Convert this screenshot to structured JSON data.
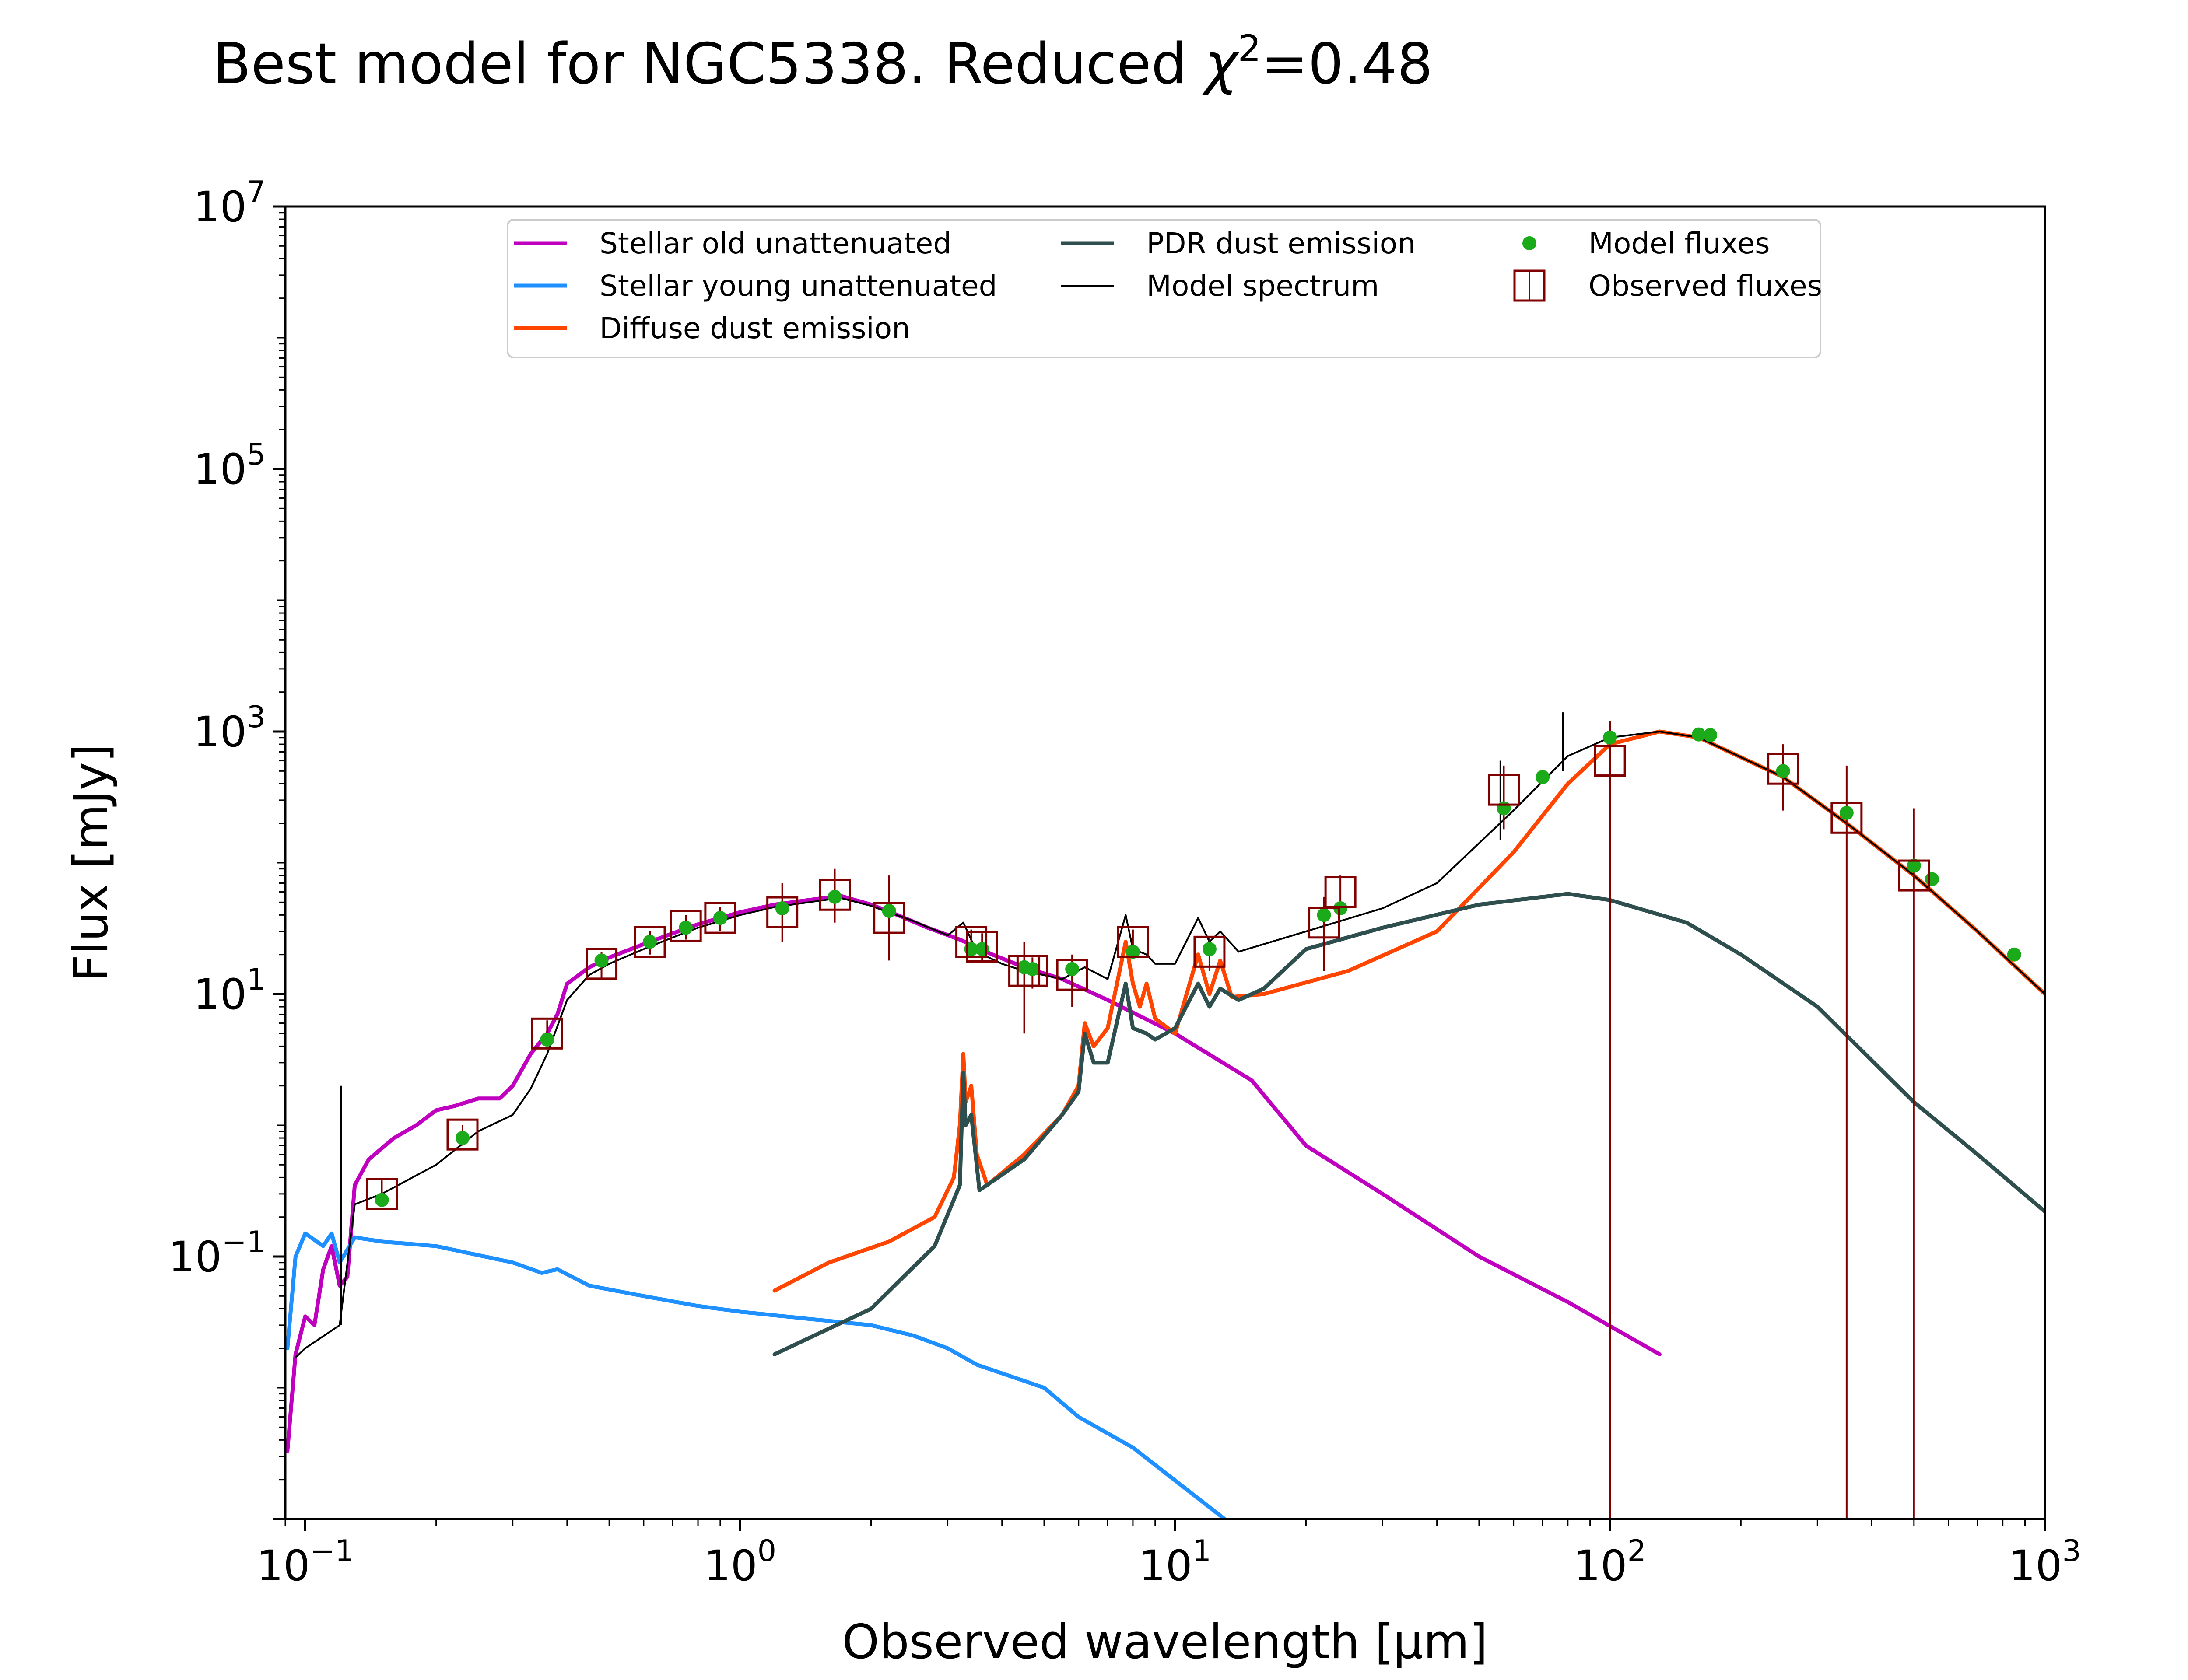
{
  "chart_data": {
    "type": "line",
    "title": "Best model for NGC5338. Reduced χ²=0.48",
    "title_parts": {
      "prefix": "Best model for NGC5338. Reduced ",
      "chi": "χ",
      "sup": "2",
      "suffix": "=0.48"
    },
    "xlabel": "Observed wavelength [μm]",
    "ylabel": "Flux [mJy]",
    "xscale": "log",
    "yscale": "log",
    "xlim": [
      0.09,
      1000
    ],
    "ylim": [
      0.001,
      10000000
    ],
    "x_ticks": [
      {
        "value": 0.1,
        "base": "10",
        "exp": "−1"
      },
      {
        "value": 1,
        "base": "10",
        "exp": "0"
      },
      {
        "value": 10,
        "base": "10",
        "exp": "1"
      },
      {
        "value": 100,
        "base": "10",
        "exp": "2"
      },
      {
        "value": 1000,
        "base": "10",
        "exp": "3"
      }
    ],
    "y_ticks": [
      {
        "value": 0.1,
        "base": "10",
        "exp": "−1"
      },
      {
        "value": 10,
        "base": "10",
        "exp": "1"
      },
      {
        "value": 1000,
        "base": "10",
        "exp": "3"
      },
      {
        "value": 100000,
        "base": "10",
        "exp": "5"
      },
      {
        "value": 10000000,
        "base": "10",
        "exp": "7"
      }
    ],
    "grid": false,
    "legend_position": "top-center",
    "legend": [
      {
        "label": "Stellar old unattenuated",
        "style": "line",
        "color": "#bf00bf"
      },
      {
        "label": "Stellar young unattenuated",
        "style": "line",
        "color": "#1e90ff"
      },
      {
        "label": "Diffuse dust emission",
        "style": "line",
        "color": "#ff4500"
      },
      {
        "label": "PDR dust emission",
        "style": "line",
        "color": "#2f4f4f"
      },
      {
        "label": "Model spectrum",
        "style": "thin-line",
        "color": "#000000"
      },
      {
        "label": "Model fluxes",
        "style": "dot",
        "color": "#1aaa1a"
      },
      {
        "label": "Observed fluxes",
        "style": "square",
        "color": "#800000"
      }
    ],
    "series": [
      {
        "name": "Stellar old unattenuated",
        "color": "#bf00bf",
        "points": [
          [
            0.091,
            0.0033
          ],
          [
            0.095,
            0.018
          ],
          [
            0.1,
            0.035
          ],
          [
            0.105,
            0.03
          ],
          [
            0.11,
            0.08
          ],
          [
            0.115,
            0.12
          ],
          [
            0.12,
            0.06
          ],
          [
            0.125,
            0.07
          ],
          [
            0.13,
            0.35
          ],
          [
            0.14,
            0.55
          ],
          [
            0.16,
            0.8
          ],
          [
            0.18,
            1.0
          ],
          [
            0.2,
            1.3
          ],
          [
            0.22,
            1.4
          ],
          [
            0.25,
            1.6
          ],
          [
            0.28,
            1.6
          ],
          [
            0.3,
            2.0
          ],
          [
            0.33,
            3.5
          ],
          [
            0.36,
            5.0
          ],
          [
            0.38,
            7.0
          ],
          [
            0.4,
            12
          ],
          [
            0.45,
            16
          ],
          [
            0.5,
            19
          ],
          [
            0.6,
            24
          ],
          [
            0.7,
            29
          ],
          [
            0.8,
            34
          ],
          [
            0.9,
            38
          ],
          [
            1.0,
            42
          ],
          [
            1.2,
            48
          ],
          [
            1.5,
            53
          ],
          [
            1.7,
            56
          ],
          [
            2.0,
            48
          ],
          [
            2.3,
            40
          ],
          [
            2.7,
            32
          ],
          [
            3.2,
            26
          ],
          [
            3.8,
            20
          ],
          [
            4.5,
            16
          ],
          [
            5.5,
            13
          ],
          [
            7,
            9
          ],
          [
            10,
            5
          ],
          [
            15,
            2.2
          ],
          [
            20,
            0.7
          ],
          [
            30,
            0.3
          ],
          [
            50,
            0.1
          ],
          [
            80,
            0.045
          ],
          [
            130,
            0.018
          ]
        ]
      },
      {
        "name": "Stellar young unattenuated",
        "color": "#1e90ff",
        "points": [
          [
            0.091,
            0.02
          ],
          [
            0.095,
            0.1
          ],
          [
            0.1,
            0.15
          ],
          [
            0.11,
            0.12
          ],
          [
            0.115,
            0.15
          ],
          [
            0.12,
            0.09
          ],
          [
            0.13,
            0.14
          ],
          [
            0.15,
            0.13
          ],
          [
            0.2,
            0.12
          ],
          [
            0.3,
            0.09
          ],
          [
            0.35,
            0.075
          ],
          [
            0.38,
            0.08
          ],
          [
            0.45,
            0.06
          ],
          [
            0.6,
            0.05
          ],
          [
            0.8,
            0.042
          ],
          [
            1.0,
            0.038
          ],
          [
            1.5,
            0.033
          ],
          [
            2.0,
            0.03
          ],
          [
            2.5,
            0.025
          ],
          [
            3.0,
            0.02
          ],
          [
            3.5,
            0.015
          ],
          [
            5.0,
            0.01
          ],
          [
            6.0,
            0.006
          ],
          [
            8.0,
            0.0035
          ],
          [
            13.0,
            0.001
          ]
        ]
      },
      {
        "name": "Diffuse dust emission",
        "color": "#ff4500",
        "points": [
          [
            1.2,
            0.055
          ],
          [
            1.6,
            0.09
          ],
          [
            2.2,
            0.13
          ],
          [
            2.8,
            0.2
          ],
          [
            3.1,
            0.4
          ],
          [
            3.2,
            1.0
          ],
          [
            3.26,
            3.5
          ],
          [
            3.3,
            1.5
          ],
          [
            3.4,
            2.0
          ],
          [
            3.5,
            0.6
          ],
          [
            3.7,
            0.35
          ],
          [
            4.5,
            0.6
          ],
          [
            5.5,
            1.2
          ],
          [
            6.0,
            2.0
          ],
          [
            6.2,
            6.0
          ],
          [
            6.5,
            4.0
          ],
          [
            7.0,
            5.5
          ],
          [
            7.7,
            25
          ],
          [
            8.0,
            12
          ],
          [
            8.3,
            8
          ],
          [
            8.6,
            12
          ],
          [
            9.0,
            6.5
          ],
          [
            10.0,
            5.0
          ],
          [
            11.3,
            20
          ],
          [
            12.0,
            10
          ],
          [
            12.7,
            18
          ],
          [
            13.5,
            9.5
          ],
          [
            16,
            10
          ],
          [
            25,
            15
          ],
          [
            40,
            30
          ],
          [
            60,
            120
          ],
          [
            80,
            400
          ],
          [
            100,
            800
          ],
          [
            130,
            1000
          ],
          [
            160,
            900
          ],
          [
            250,
            450
          ],
          [
            350,
            200
          ],
          [
            500,
            80
          ],
          [
            700,
            30
          ],
          [
            1000,
            10
          ]
        ]
      },
      {
        "name": "PDR dust emission",
        "color": "#2f4f4f",
        "points": [
          [
            1.2,
            0.018
          ],
          [
            2.0,
            0.04
          ],
          [
            2.8,
            0.12
          ],
          [
            3.2,
            0.35
          ],
          [
            3.26,
            2.5
          ],
          [
            3.3,
            1.0
          ],
          [
            3.4,
            1.2
          ],
          [
            3.55,
            0.32
          ],
          [
            4.5,
            0.55
          ],
          [
            5.5,
            1.2
          ],
          [
            6.0,
            1.8
          ],
          [
            6.2,
            5.0
          ],
          [
            6.5,
            3.0
          ],
          [
            7.0,
            3.0
          ],
          [
            7.7,
            12
          ],
          [
            8.0,
            5.5
          ],
          [
            8.6,
            5.0
          ],
          [
            9.0,
            4.5
          ],
          [
            10,
            5.5
          ],
          [
            11.3,
            12
          ],
          [
            12.0,
            8
          ],
          [
            12.7,
            11
          ],
          [
            14,
            9
          ],
          [
            16,
            11
          ],
          [
            20,
            22
          ],
          [
            30,
            32
          ],
          [
            50,
            48
          ],
          [
            80,
            58
          ],
          [
            100,
            52
          ],
          [
            150,
            35
          ],
          [
            200,
            20
          ],
          [
            300,
            8
          ],
          [
            500,
            1.5
          ],
          [
            700,
            0.6
          ],
          [
            1000,
            0.22
          ]
        ]
      },
      {
        "name": "Model spectrum",
        "color": "#000000",
        "points": [
          [
            0.095,
            0.017
          ],
          [
            0.1,
            0.02
          ],
          [
            0.12,
            0.03
          ],
          [
            0.13,
            0.25
          ],
          [
            0.15,
            0.3
          ],
          [
            0.2,
            0.5
          ],
          [
            0.25,
            0.9
          ],
          [
            0.3,
            1.2
          ],
          [
            0.33,
            1.9
          ],
          [
            0.36,
            3.5
          ],
          [
            0.4,
            9
          ],
          [
            0.45,
            14
          ],
          [
            0.5,
            17
          ],
          [
            0.6,
            22
          ],
          [
            0.7,
            27
          ],
          [
            0.8,
            32
          ],
          [
            0.9,
            36
          ],
          [
            1.0,
            40
          ],
          [
            1.2,
            46
          ],
          [
            1.5,
            51
          ],
          [
            1.7,
            54
          ],
          [
            2.0,
            47
          ],
          [
            2.5,
            36
          ],
          [
            3.0,
            28
          ],
          [
            3.26,
            35
          ],
          [
            3.5,
            21
          ],
          [
            4.0,
            17
          ],
          [
            4.5,
            15
          ],
          [
            5.5,
            13
          ],
          [
            6.2,
            16
          ],
          [
            7.0,
            13
          ],
          [
            7.7,
            40
          ],
          [
            8.0,
            22
          ],
          [
            8.6,
            20
          ],
          [
            9.0,
            17
          ],
          [
            10,
            17
          ],
          [
            11.3,
            38
          ],
          [
            12,
            25
          ],
          [
            12.7,
            30
          ],
          [
            14,
            21
          ],
          [
            16,
            24
          ],
          [
            20,
            30
          ],
          [
            30,
            45
          ],
          [
            40,
            70
          ],
          [
            60,
            250
          ],
          [
            80,
            650
          ],
          [
            100,
            900
          ],
          [
            130,
            1000
          ],
          [
            160,
            900
          ],
          [
            250,
            450
          ],
          [
            350,
            200
          ],
          [
            500,
            80
          ],
          [
            700,
            30
          ],
          [
            1000,
            10
          ]
        ]
      }
    ],
    "spikes": [
      [
        0.121,
        0.03,
        2.0
      ],
      [
        56,
        150,
        600
      ],
      [
        78,
        500,
        1400
      ]
    ],
    "model_fluxes": [
      [
        0.15,
        0.27
      ],
      [
        0.23,
        0.8
      ],
      [
        0.36,
        4.5
      ],
      [
        0.48,
        18
      ],
      [
        0.62,
        25
      ],
      [
        0.75,
        32
      ],
      [
        0.9,
        38
      ],
      [
        1.25,
        45
      ],
      [
        1.65,
        55
      ],
      [
        2.2,
        43
      ],
      [
        3.4,
        22
      ],
      [
        3.6,
        22
      ],
      [
        4.5,
        16
      ],
      [
        4.7,
        15.5
      ],
      [
        5.8,
        15.5
      ],
      [
        8.0,
        21
      ],
      [
        12,
        22
      ],
      [
        22,
        40
      ],
      [
        24,
        45
      ],
      [
        57,
        260
      ],
      [
        70,
        450
      ],
      [
        100,
        900
      ],
      [
        160,
        950
      ],
      [
        170,
        940
      ],
      [
        250,
        500
      ],
      [
        350,
        240
      ],
      [
        500,
        95
      ],
      [
        550,
        75
      ],
      [
        850,
        20
      ]
    ],
    "observed_fluxes": [
      [
        0.15,
        0.3,
        0.25,
        0.38
      ],
      [
        0.23,
        0.85,
        0.7,
        1.0
      ],
      [
        0.36,
        5.0,
        4.0,
        6.3
      ],
      [
        0.48,
        17,
        13,
        21
      ],
      [
        0.62,
        25,
        20,
        30
      ],
      [
        0.75,
        33,
        26,
        40
      ],
      [
        0.9,
        38,
        30,
        46
      ],
      [
        1.25,
        42,
        25,
        70
      ],
      [
        1.65,
        57,
        35,
        90
      ],
      [
        2.2,
        38,
        18,
        80
      ],
      [
        3.4,
        25,
        19,
        31
      ],
      [
        3.6,
        23,
        18,
        29
      ],
      [
        4.5,
        15,
        5,
        25
      ],
      [
        4.7,
        15,
        11,
        19
      ],
      [
        5.8,
        14,
        8,
        20
      ],
      [
        8.0,
        25,
        19,
        31
      ],
      [
        12,
        21,
        15,
        27
      ],
      [
        22,
        35,
        15,
        55
      ],
      [
        24,
        60,
        45,
        80
      ],
      [
        57,
        360,
        180,
        550
      ],
      [
        100,
        600,
        0.001,
        1200
      ],
      [
        250,
        520,
        250,
        800
      ],
      [
        350,
        220,
        0.001,
        550
      ],
      [
        500,
        80,
        0.001,
        260
      ]
    ]
  }
}
